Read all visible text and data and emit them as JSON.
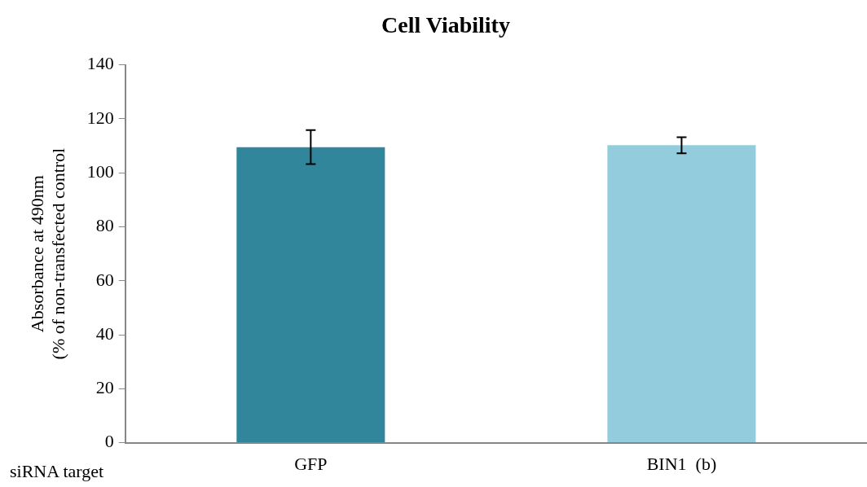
{
  "chart_data": {
    "type": "bar",
    "title": "Cell Viability",
    "xlabel": "siRNA target",
    "ylabel": "Absorbance at 490nm\n(% of non-transfected control",
    "categories": [
      "GFP",
      "BIN1  (b)"
    ],
    "values": [
      109.5,
      110.2
    ],
    "colors": [
      "#31869b",
      "#93cddd"
    ],
    "errors": [
      6.3,
      3
    ],
    "ylim": [
      0,
      140
    ],
    "yticks": [
      0,
      20,
      40,
      60,
      80,
      100,
      120,
      140
    ],
    "grid": false,
    "legend": false
  }
}
